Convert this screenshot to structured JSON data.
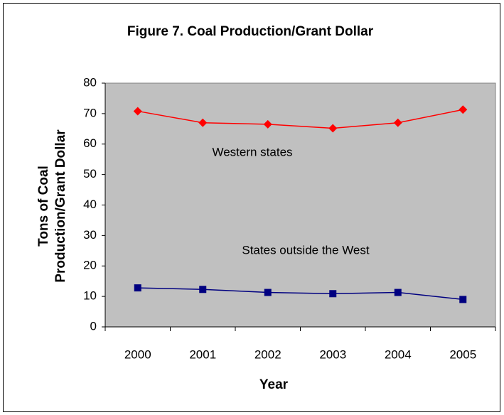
{
  "chart_data": {
    "type": "line",
    "title": "Figure 7.  Coal Production/Grant Dollar",
    "xlabel": "Year",
    "ylabel": [
      "Tons of Coal",
      "Production/Grant Dollar"
    ],
    "categories": [
      "2000",
      "2001",
      "2002",
      "2003",
      "2004",
      "2005"
    ],
    "series": [
      {
        "name": "Western states",
        "color": "#ff0000",
        "marker": "diamond",
        "values": [
          70.8,
          67,
          66.5,
          65.2,
          67,
          71.3
        ]
      },
      {
        "name": "States outside the West",
        "color": "#000080",
        "marker": "square",
        "values": [
          12.8,
          12.3,
          11.3,
          10.9,
          11.3,
          9.0
        ]
      }
    ],
    "ylim": [
      0,
      80
    ],
    "yticks": [
      0,
      10,
      20,
      30,
      40,
      50,
      60,
      70,
      80
    ],
    "plot_background": "#c0c0c0"
  }
}
